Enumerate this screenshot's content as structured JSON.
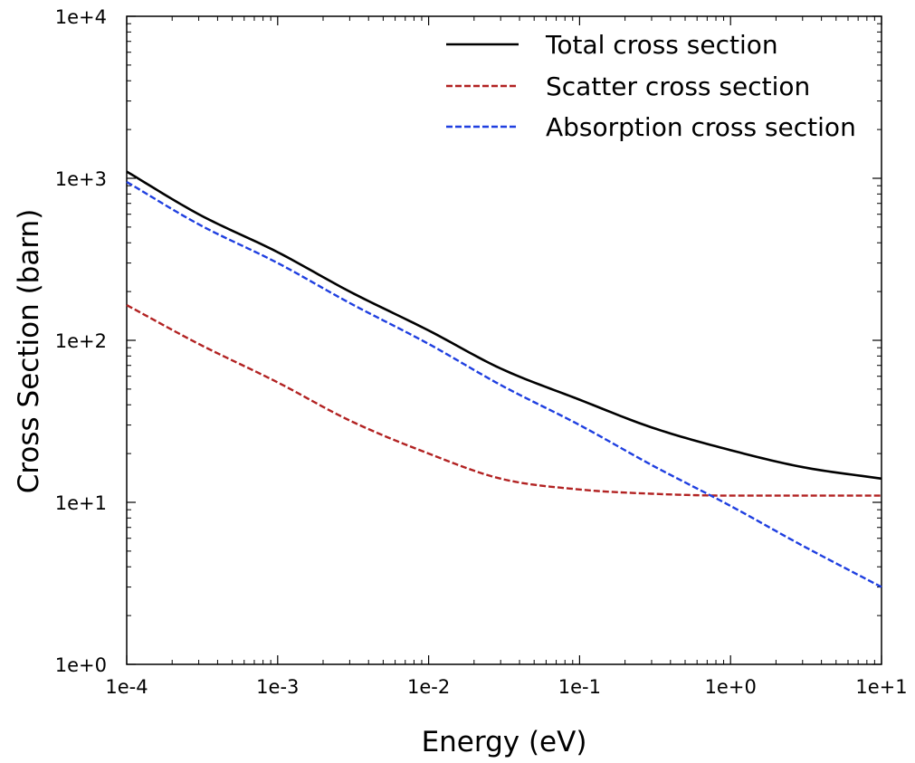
{
  "chart_data": {
    "type": "line",
    "xlabel": "Energy (eV)",
    "ylabel": "Cross Section (barn)",
    "xscale": "log",
    "yscale": "log",
    "xlim": [
      0.0001,
      10
    ],
    "ylim": [
      1,
      10000
    ],
    "x_ticks": [
      "1e-4",
      "1e-3",
      "1e-2",
      "1e-1",
      "1e+0",
      "1e+1"
    ],
    "y_ticks": [
      "1e+0",
      "1e+1",
      "1e+2",
      "1e+3",
      "1e+4"
    ],
    "grid": false,
    "legend_position": "top-right",
    "x": [
      0.0001,
      0.0003,
      0.001,
      0.003,
      0.01,
      0.03,
      0.1,
      0.3,
      1,
      3,
      10
    ],
    "series": [
      {
        "name": "Total cross section",
        "color": "#000000",
        "dash": "solid",
        "values": [
          1100,
          600,
          350,
          200,
          115,
          67,
          43,
          29,
          21,
          16.5,
          14
        ]
      },
      {
        "name": "Scatter cross section",
        "color": "#b22222",
        "dash": "dashed",
        "values": [
          165,
          95,
          55,
          32,
          20,
          14,
          12,
          11.3,
          11,
          11,
          11
        ]
      },
      {
        "name": "Absorption cross section",
        "color": "#1f3fe0",
        "dash": "dashed",
        "values": [
          950,
          520,
          300,
          170,
          95,
          53,
          30,
          17,
          9.5,
          5.4,
          3
        ]
      }
    ]
  }
}
